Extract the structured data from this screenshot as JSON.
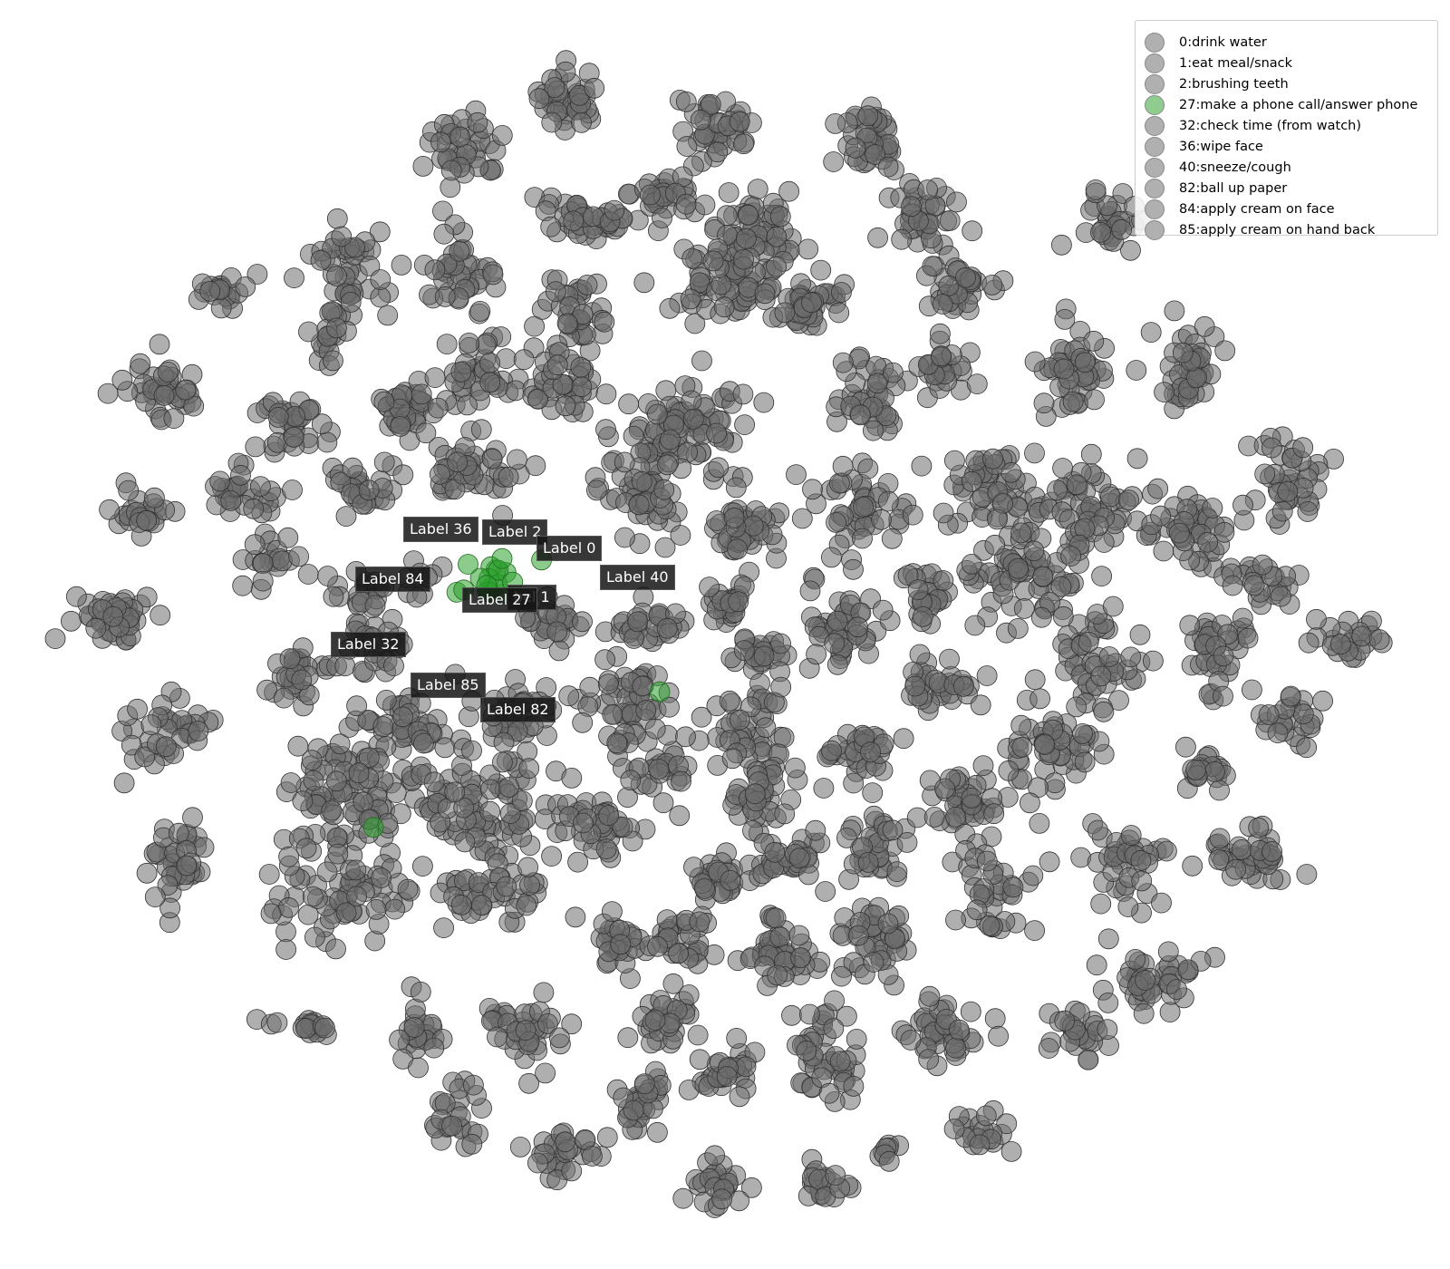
{
  "chart_data": {
    "type": "scatter",
    "title": "",
    "xlabel": "",
    "ylabel": "",
    "grid": false,
    "axes_visible": false,
    "legend_placement": "top-right",
    "colors": {
      "default_points": "#6e6e6e",
      "highlight_points": "#2ca02c",
      "legend_default_marker": "#b0b0b0",
      "legend_highlight_marker": "#90cc90"
    },
    "legend": [
      {
        "id": 0,
        "label": "0:drink water",
        "highlight": false
      },
      {
        "id": 1,
        "label": "1:eat meal/snack",
        "highlight": false
      },
      {
        "id": 2,
        "label": "2:brushing teeth",
        "highlight": false
      },
      {
        "id": 27,
        "label": "27:make a phone call/answer phone",
        "highlight": true
      },
      {
        "id": 32,
        "label": "32:check time (from watch)",
        "highlight": false
      },
      {
        "id": 36,
        "label": "36:wipe face",
        "highlight": false
      },
      {
        "id": 40,
        "label": "40:sneeze/cough",
        "highlight": false
      },
      {
        "id": 82,
        "label": "82:ball up paper",
        "highlight": false
      },
      {
        "id": 84,
        "label": "84:apply cream on face",
        "highlight": false
      },
      {
        "id": 85,
        "label": "85:apply cream on hand back",
        "highlight": false
      }
    ],
    "annotations": [
      {
        "text": "Label 36",
        "class_id": 36
      },
      {
        "text": "Label 2",
        "class_id": 2
      },
      {
        "text": "Label 0",
        "class_id": 0
      },
      {
        "text": "Label 84",
        "class_id": 84
      },
      {
        "text": "Label 40",
        "class_id": 40
      },
      {
        "text": "bel 1",
        "class_id": 1
      },
      {
        "text": "Label 27",
        "class_id": 27
      },
      {
        "text": "Label 32",
        "class_id": 32
      },
      {
        "text": "Label 85",
        "class_id": 85
      },
      {
        "text": "Label 82",
        "class_id": 82
      }
    ]
  }
}
